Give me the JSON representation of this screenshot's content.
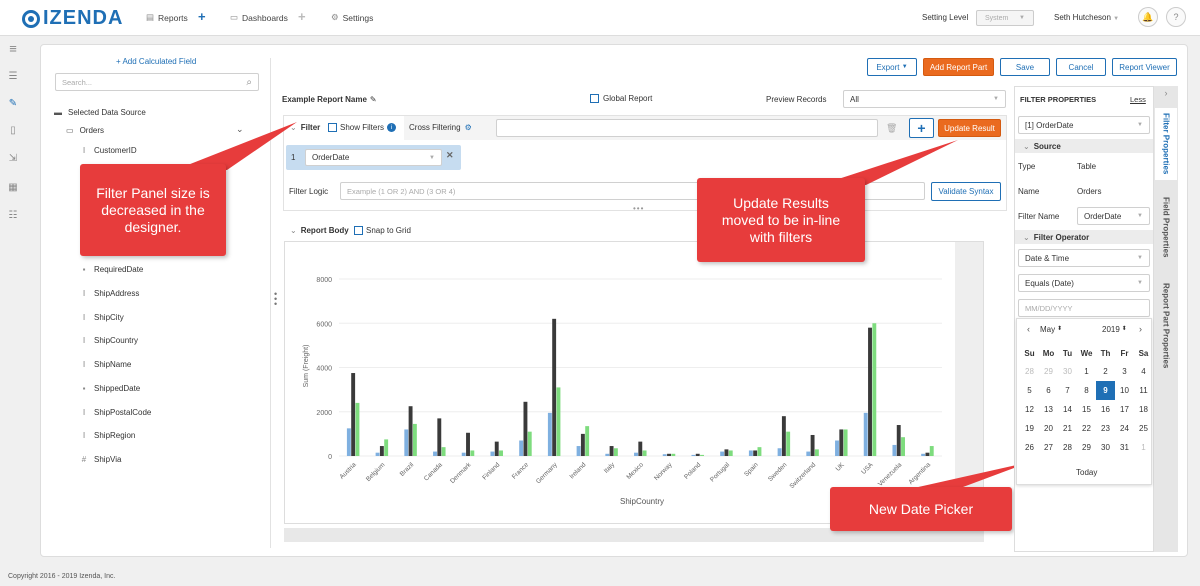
{
  "topbar": {
    "logo": "IZENDA",
    "nav": [
      {
        "label": "Reports"
      },
      {
        "label": "Dashboards"
      },
      {
        "label": "Settings"
      }
    ],
    "setting_level_label": "Setting Level",
    "setting_level_value": "System",
    "user": "Seth Hutcheson"
  },
  "left_panel": {
    "add_calc_field": "+ Add Calculated Field",
    "search_placeholder": "Search...",
    "data_source": "Selected Data Source",
    "table": "Orders",
    "fields": [
      {
        "icon": "text-icon",
        "label": "CustomerID"
      },
      {
        "icon": "date-icon",
        "label": "RequiredDate"
      },
      {
        "icon": "text-icon",
        "label": "ShipAddress"
      },
      {
        "icon": "text-icon",
        "label": "ShipCity"
      },
      {
        "icon": "text-icon",
        "label": "ShipCountry"
      },
      {
        "icon": "text-icon",
        "label": "ShipName"
      },
      {
        "icon": "date-icon",
        "label": "ShippedDate"
      },
      {
        "icon": "text-icon",
        "label": "ShipPostalCode"
      },
      {
        "icon": "text-icon",
        "label": "ShipRegion"
      },
      {
        "icon": "number-icon",
        "label": "ShipVia"
      }
    ]
  },
  "toolbar": {
    "export": "Export",
    "add_report_part": "Add Report Part",
    "save": "Save",
    "cancel": "Cancel",
    "report_viewer": "Report Viewer"
  },
  "report": {
    "name": "Example Report Name",
    "global_report": "Global Report",
    "preview_records_label": "Preview Records",
    "preview_records_value": "All"
  },
  "filter": {
    "label": "Filter",
    "show_filters": "Show Filters",
    "cross_filtering": "Cross Filtering",
    "update_result": "Update Result",
    "row_num": "1",
    "row_value": "OrderDate",
    "logic_label": "Filter Logic",
    "logic_placeholder": "Example (1 OR 2) AND (3 OR 4)",
    "validate": "Validate Syntax"
  },
  "report_body": {
    "label": "Report Body",
    "snap_to_grid": "Snap to Grid"
  },
  "chart_data": {
    "type": "bar",
    "xlabel": "ShipCountry",
    "ylabel": "Sum (Freight)",
    "ylim": [
      0,
      8000
    ],
    "yticks": [
      0,
      2000,
      4000,
      6000,
      8000
    ],
    "categories": [
      "Austria",
      "Belgium",
      "Brazil",
      "Canada",
      "Denmark",
      "Finland",
      "France",
      "Germany",
      "Ireland",
      "Italy",
      "Mexico",
      "Norway",
      "Poland",
      "Portugal",
      "Spain",
      "Sweden",
      "Switzerland",
      "UK",
      "USA",
      "Venezuela",
      "Argentina"
    ],
    "colors": [
      "#7fb0e0",
      "#3a3a3a",
      "#7edc7e"
    ],
    "series": [
      {
        "values": [
          1250,
          150,
          1200,
          200,
          150,
          200,
          700,
          1950,
          450,
          100,
          150,
          80,
          50,
          200,
          250,
          350,
          200,
          700,
          1950,
          500,
          100
        ]
      },
      {
        "values": [
          3750,
          450,
          2250,
          1700,
          1050,
          650,
          2450,
          6200,
          1000,
          450,
          650,
          100,
          100,
          300,
          250,
          1800,
          950,
          1200,
          5800,
          1400,
          150
        ]
      },
      {
        "values": [
          2400,
          750,
          1450,
          400,
          250,
          250,
          1100,
          3100,
          1350,
          350,
          250,
          100,
          50,
          250,
          400,
          1100,
          300,
          1200,
          6000,
          850,
          450
        ]
      }
    ]
  },
  "filter_properties": {
    "title": "FILTER PROPERTIES",
    "less": "Less",
    "selected": "[1] OrderDate",
    "source_header": "Source",
    "type_label": "Type",
    "type_value": "Table",
    "name_label": "Name",
    "name_value": "Orders",
    "filter_name_label": "Filter Name",
    "filter_name_value": "OrderDate",
    "operator_header": "Filter Operator",
    "operator_type": "Date & Time",
    "operator_value": "Equals (Date)",
    "date_placeholder": "MM/DD/YYYY",
    "tabs": [
      "Filter Properties",
      "Field Properties",
      "Report Part Properties"
    ]
  },
  "calendar": {
    "month": "May",
    "year": "2019",
    "weekdays": [
      "Su",
      "Mo",
      "Tu",
      "We",
      "Th",
      "Fr",
      "Sa"
    ],
    "weeks": [
      [
        "28",
        "29",
        "30",
        "1",
        "2",
        "3",
        "4"
      ],
      [
        "5",
        "6",
        "7",
        "8",
        "9",
        "10",
        "11"
      ],
      [
        "12",
        "13",
        "14",
        "15",
        "16",
        "17",
        "18"
      ],
      [
        "19",
        "20",
        "21",
        "22",
        "23",
        "24",
        "25"
      ],
      [
        "26",
        "27",
        "28",
        "29",
        "30",
        "31",
        "1"
      ]
    ],
    "selected": "9",
    "today": "Today"
  },
  "callouts": {
    "filter_panel": "Filter Panel size is decreased in the designer.",
    "update_results": "Update Results moved to be in-line with filters",
    "date_picker": "New Date Picker"
  },
  "footer": "Copyright 2016 - 2019 Izenda, Inc."
}
